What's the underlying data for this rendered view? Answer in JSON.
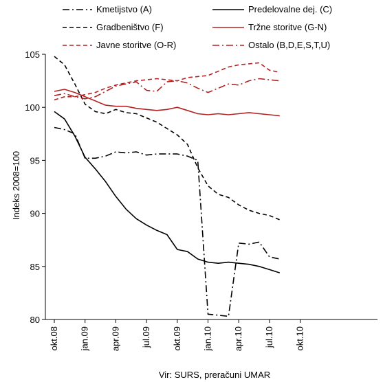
{
  "chart_data": {
    "type": "line",
    "title": "",
    "xlabel": "",
    "ylabel": "Indeks 2008=100",
    "source": "Vir: SURS, preračuni UMAR",
    "ylim": [
      80,
      105
    ],
    "yticks": [
      "80",
      "85",
      "90",
      "95",
      "100",
      "105"
    ],
    "xticks": [
      "okt.08",
      "jan.09",
      "apr.09",
      "jul.09",
      "okt.09",
      "jan.10",
      "apr.10",
      "jul.10",
      "okt.10"
    ],
    "legend_position": "top",
    "grid": false,
    "months": [
      "okt.08",
      "nov.08",
      "dec.08",
      "jan.09",
      "feb.09",
      "mar.09",
      "apr.09",
      "maj.09",
      "jun.09",
      "jul.09",
      "avg.09",
      "sep.09",
      "okt.09",
      "nov.09",
      "dec.09",
      "jan.10",
      "feb.10",
      "mar.10",
      "apr.10",
      "maj.10",
      "jun.10",
      "jul.10",
      "avg.10"
    ],
    "series": [
      {
        "name": "Kmetijstvo (A)",
        "color": "#000000",
        "dash": "dash-dot",
        "values": [
          98.1,
          97.9,
          97.5,
          95.2,
          95.2,
          95.4,
          95.8,
          95.7,
          95.8,
          95.5,
          95.6,
          95.6,
          95.6,
          95.4,
          95.0,
          80.5,
          80.4,
          80.3,
          87.2,
          87.1,
          87.3,
          85.9,
          85.7
        ]
      },
      {
        "name": "Predelovalne dej. (C)",
        "color": "#000000",
        "dash": "solid",
        "values": [
          99.6,
          98.9,
          97.3,
          95.3,
          94.2,
          93.0,
          91.6,
          90.4,
          89.5,
          88.9,
          88.4,
          88.0,
          86.6,
          86.4,
          85.7,
          85.4,
          85.3,
          85.4,
          85.3,
          85.2,
          85.0,
          84.7,
          84.4
        ]
      },
      {
        "name": "Gradbeništvo (F)",
        "color": "#000000",
        "dash": "dashed",
        "values": [
          104.8,
          104.0,
          102.2,
          100.3,
          99.6,
          99.4,
          99.8,
          99.5,
          99.4,
          99.0,
          98.6,
          98.0,
          97.4,
          96.5,
          94.3,
          92.6,
          91.8,
          91.5,
          90.8,
          90.3,
          90.0,
          89.8,
          89.4
        ]
      },
      {
        "name": "Tržne storitve (G-N)",
        "color": "#b22222",
        "dash": "solid",
        "values": [
          101.5,
          101.7,
          101.4,
          101.0,
          100.6,
          100.2,
          100.1,
          100.1,
          99.9,
          99.8,
          99.7,
          99.8,
          100.0,
          99.7,
          99.4,
          99.3,
          99.4,
          99.3,
          99.4,
          99.5,
          99.4,
          99.3,
          99.2
        ]
      },
      {
        "name": "Javne storitve (O-R)",
        "color": "#b22222",
        "dash": "dashed",
        "values": [
          100.7,
          101.0,
          101.0,
          101.2,
          101.4,
          101.8,
          102.1,
          102.3,
          102.5,
          102.6,
          102.7,
          102.6,
          102.5,
          102.8,
          102.9,
          103.0,
          103.4,
          103.8,
          104.0,
          104.1,
          104.2,
          103.5,
          103.3
        ]
      },
      {
        "name": "Ostalo (B,D,E,S,T,U)",
        "color": "#b22222",
        "dash": "dash-dot",
        "values": [
          101.1,
          101.3,
          101.0,
          100.8,
          101.0,
          101.5,
          102.0,
          102.2,
          102.4,
          101.6,
          101.5,
          102.4,
          102.5,
          102.3,
          101.8,
          101.4,
          101.8,
          102.2,
          102.1,
          102.5,
          102.7,
          102.6,
          102.5
        ]
      }
    ]
  }
}
